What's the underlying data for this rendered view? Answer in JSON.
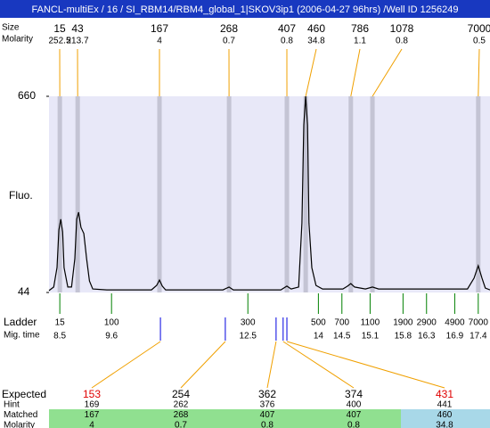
{
  "header": {
    "title": "FANCL-multiEx / 16 / SI_RBM14/RBM4_global_1|SKOV3ip1 (2006-04-27 96hrs) /Well ID 1256249"
  },
  "chart_data": {
    "type": "line",
    "y_label": "Fluo.",
    "ylim": [
      44,
      660
    ],
    "yticks": [
      44,
      660
    ],
    "xlim": [
      8.27,
      17.65
    ],
    "background": "#e8e8f8",
    "band_color": "#c4c4d4",
    "x": [
      8.27,
      8.37,
      8.44,
      8.48,
      8.52,
      8.56,
      8.59,
      8.67,
      8.75,
      8.82,
      8.86,
      8.9,
      8.95,
      9.01,
      9.07,
      9.13,
      9.2,
      9.5,
      10.45,
      10.56,
      10.62,
      10.68,
      10.75,
      11.97,
      12.1,
      12.19,
      13.2,
      13.33,
      13.42,
      13.58,
      13.65,
      13.69,
      13.73,
      13.77,
      13.8,
      13.86,
      13.95,
      14.09,
      14.52,
      14.62,
      14.69,
      14.77,
      15.0,
      15.15,
      15.28,
      17.17,
      17.31,
      17.4,
      17.48,
      17.55,
      17.65
    ],
    "series": [
      {
        "color": "#000000",
        "values": [
          50,
          61,
          122,
          240,
          274,
          234,
          122,
          61,
          61,
          150,
          274,
          296,
          248,
          229,
          150,
          80,
          55,
          52,
          52,
          66,
          83,
          64,
          52,
          52,
          61,
          52,
          52,
          64,
          55,
          61,
          262,
          570,
          660,
          570,
          262,
          122,
          66,
          55,
          55,
          64,
          72,
          61,
          55,
          61,
          55,
          55,
          89,
          128,
          89,
          58,
          52
        ]
      }
    ],
    "peaks": {
      "row_labels": [
        "Size",
        "Molarity"
      ],
      "size": [
        15,
        43,
        167,
        268,
        407,
        460,
        786,
        1078,
        7000
      ],
      "molarity": [
        252.5,
        213.7,
        4,
        0.7,
        0.8,
        34.8,
        1.1,
        0.8,
        0.5
      ],
      "time": [
        8.5,
        8.88,
        10.62,
        12.1,
        13.33,
        13.73,
        14.69,
        15.15,
        17.4
      ]
    },
    "ladder": {
      "row_labels": [
        "Ladder",
        "Mig. time"
      ],
      "size": [
        15,
        100,
        300,
        500,
        700,
        1100,
        1900,
        2900,
        4900,
        7000
      ],
      "time": [
        8.5,
        9.6,
        12.5,
        14,
        14.5,
        15.1,
        15.8,
        16.3,
        16.9,
        17.4
      ]
    },
    "expected_time": [
      10.64,
      12.02,
      13.1,
      13.25,
      13.33
    ]
  },
  "matches": {
    "row_labels": [
      "Expected",
      "Hint",
      "Matched",
      "Molarity"
    ],
    "expected": [
      153,
      254,
      362,
      374,
      431
    ],
    "expected_colors": [
      "#e00000",
      "#000000",
      "#000000",
      "#000000",
      "#e00000"
    ],
    "hint": [
      169,
      262,
      376,
      400,
      441
    ],
    "matched": [
      167,
      268,
      407,
      407,
      460
    ],
    "molarity": [
      4,
      0.7,
      0.8,
      0.8,
      34.8
    ],
    "matched_colors": [
      "#90e090",
      "#90e090",
      "#90e090",
      "#90e090",
      "#a8d8e8"
    ]
  }
}
